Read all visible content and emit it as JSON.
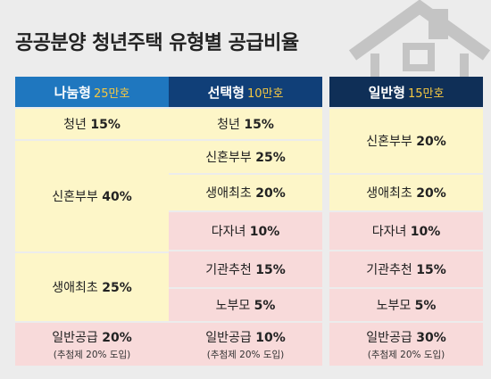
{
  "title": "공공분양 청년주택 유형별 공급비율",
  "icons": {
    "background": "house-outline-icon"
  },
  "colors": {
    "header_light": "#1f77bf",
    "header_mid": "#103f78",
    "header_dark": "#0f2f57",
    "accent": "#f5c842",
    "cell_yellow": "#fdf6c8",
    "cell_pink": "#f8dada"
  },
  "columns": [
    {
      "name": "나눔형",
      "amount": "25만호",
      "rows": [
        {
          "label": "청년",
          "value": "15%"
        },
        {
          "label": "신혼부부",
          "value": "40%"
        },
        {
          "label": "생애최초",
          "value": "25%"
        },
        {
          "label": "일반공급",
          "value": "20%",
          "note": "(추첨제 20% 도입)"
        }
      ]
    },
    {
      "name": "선택형",
      "amount": "10만호",
      "rows": [
        {
          "label": "청년",
          "value": "15%"
        },
        {
          "label": "신혼부부",
          "value": "25%"
        },
        {
          "label": "생애최초",
          "value": "20%"
        },
        {
          "label": "다자녀",
          "value": "10%"
        },
        {
          "label": "기관추천",
          "value": "15%"
        },
        {
          "label": "노부모",
          "value": "5%"
        },
        {
          "label": "일반공급",
          "value": "10%",
          "note": "(추첨제 20% 도입)"
        }
      ]
    },
    {
      "name": "일반형",
      "amount": "15만호",
      "rows": [
        {
          "label": "신혼부부",
          "value": "20%"
        },
        {
          "label": "생애최초",
          "value": "20%"
        },
        {
          "label": "다자녀",
          "value": "10%"
        },
        {
          "label": "기관추천",
          "value": "15%"
        },
        {
          "label": "노부모",
          "value": "5%"
        },
        {
          "label": "일반공급",
          "value": "30%",
          "note": "(추첨제 20% 도입)"
        }
      ]
    }
  ]
}
